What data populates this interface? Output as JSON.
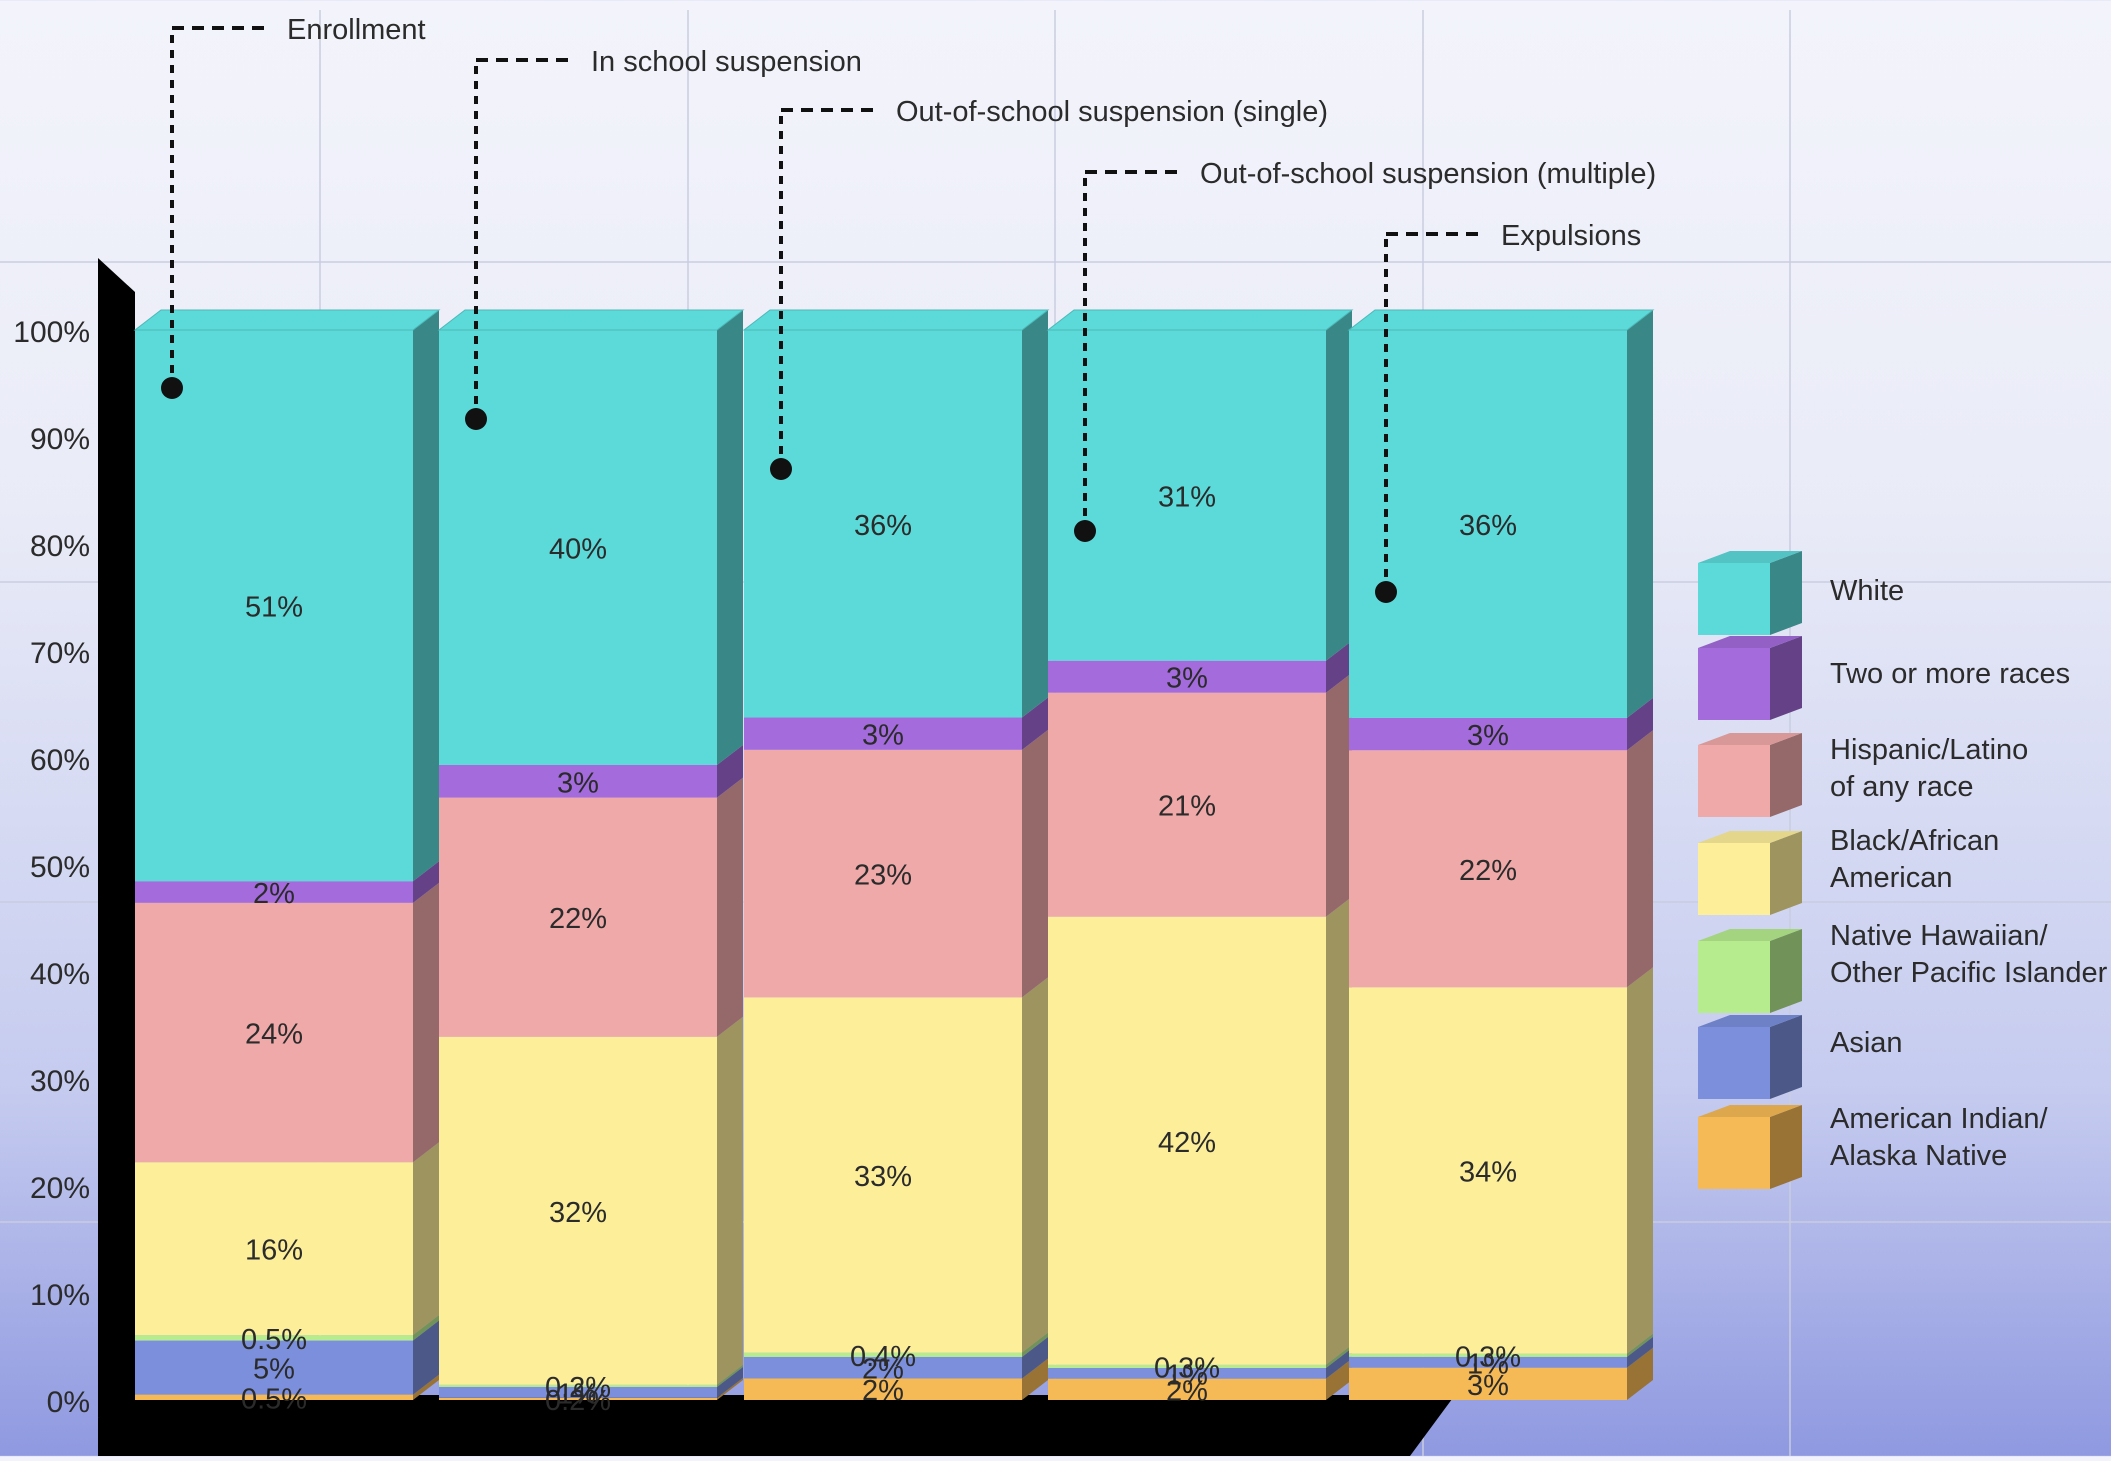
{
  "chart_data": {
    "type": "bar",
    "stacked": true,
    "style": "3d",
    "categories": [
      "Enrollment",
      "In school suspension",
      "Out-of-school suspension (single)",
      "Out-of-school suspension (multiple)",
      "Expulsions"
    ],
    "yticks": [
      "0%",
      "10%",
      "20%",
      "30%",
      "40%",
      "50%",
      "60%",
      "70%",
      "80%",
      "90%",
      "100%"
    ],
    "ylim": [
      0,
      100
    ],
    "legend_position": "right",
    "series": [
      {
        "name": "American Indian/\nAlaska Native",
        "color": "#f5b955",
        "values": [
          0.5,
          0.2,
          2,
          2,
          3
        ],
        "labels": [
          "0.5%",
          "0.2%",
          "2%",
          "2%",
          "3%"
        ]
      },
      {
        "name": "Asian",
        "color": "#7b8fdc",
        "values": [
          5,
          1,
          2,
          1,
          1
        ],
        "labels": [
          "5%",
          "1%",
          "2%",
          "1%",
          "1%"
        ]
      },
      {
        "name": "Native Hawaiian/\nOther Pacific Islander",
        "color": "#b6eb8e",
        "values": [
          0.5,
          0.2,
          0.4,
          0.3,
          0.3
        ],
        "labels": [
          "0.5%",
          "0.2%",
          "0.4%",
          "0.3%",
          "0.3%"
        ]
      },
      {
        "name": "Black/African\nAmerican",
        "color": "#fdee9a",
        "values": [
          16,
          32,
          33,
          42,
          34
        ],
        "labels": [
          "16%",
          "32%",
          "33%",
          "42%",
          "34%"
        ]
      },
      {
        "name": "Hispanic/Latino\nof any race",
        "color": "#f0a9a9",
        "values": [
          24,
          22,
          23,
          21,
          22
        ],
        "labels": [
          "24%",
          "22%",
          "23%",
          "21%",
          "22%"
        ]
      },
      {
        "name": "Two or more races",
        "color": "#a36bdb",
        "values": [
          2,
          3,
          3,
          3,
          3
        ],
        "labels": [
          "2%",
          "3%",
          "3%",
          "3%",
          "3%"
        ]
      },
      {
        "name": "White",
        "color": "#5cd9d9",
        "values": [
          51,
          40,
          36,
          31,
          36
        ],
        "labels": [
          "51%",
          "40%",
          "36%",
          "31%",
          "36%"
        ]
      }
    ],
    "legend_order": [
      6,
      5,
      4,
      3,
      2,
      1,
      0
    ]
  }
}
